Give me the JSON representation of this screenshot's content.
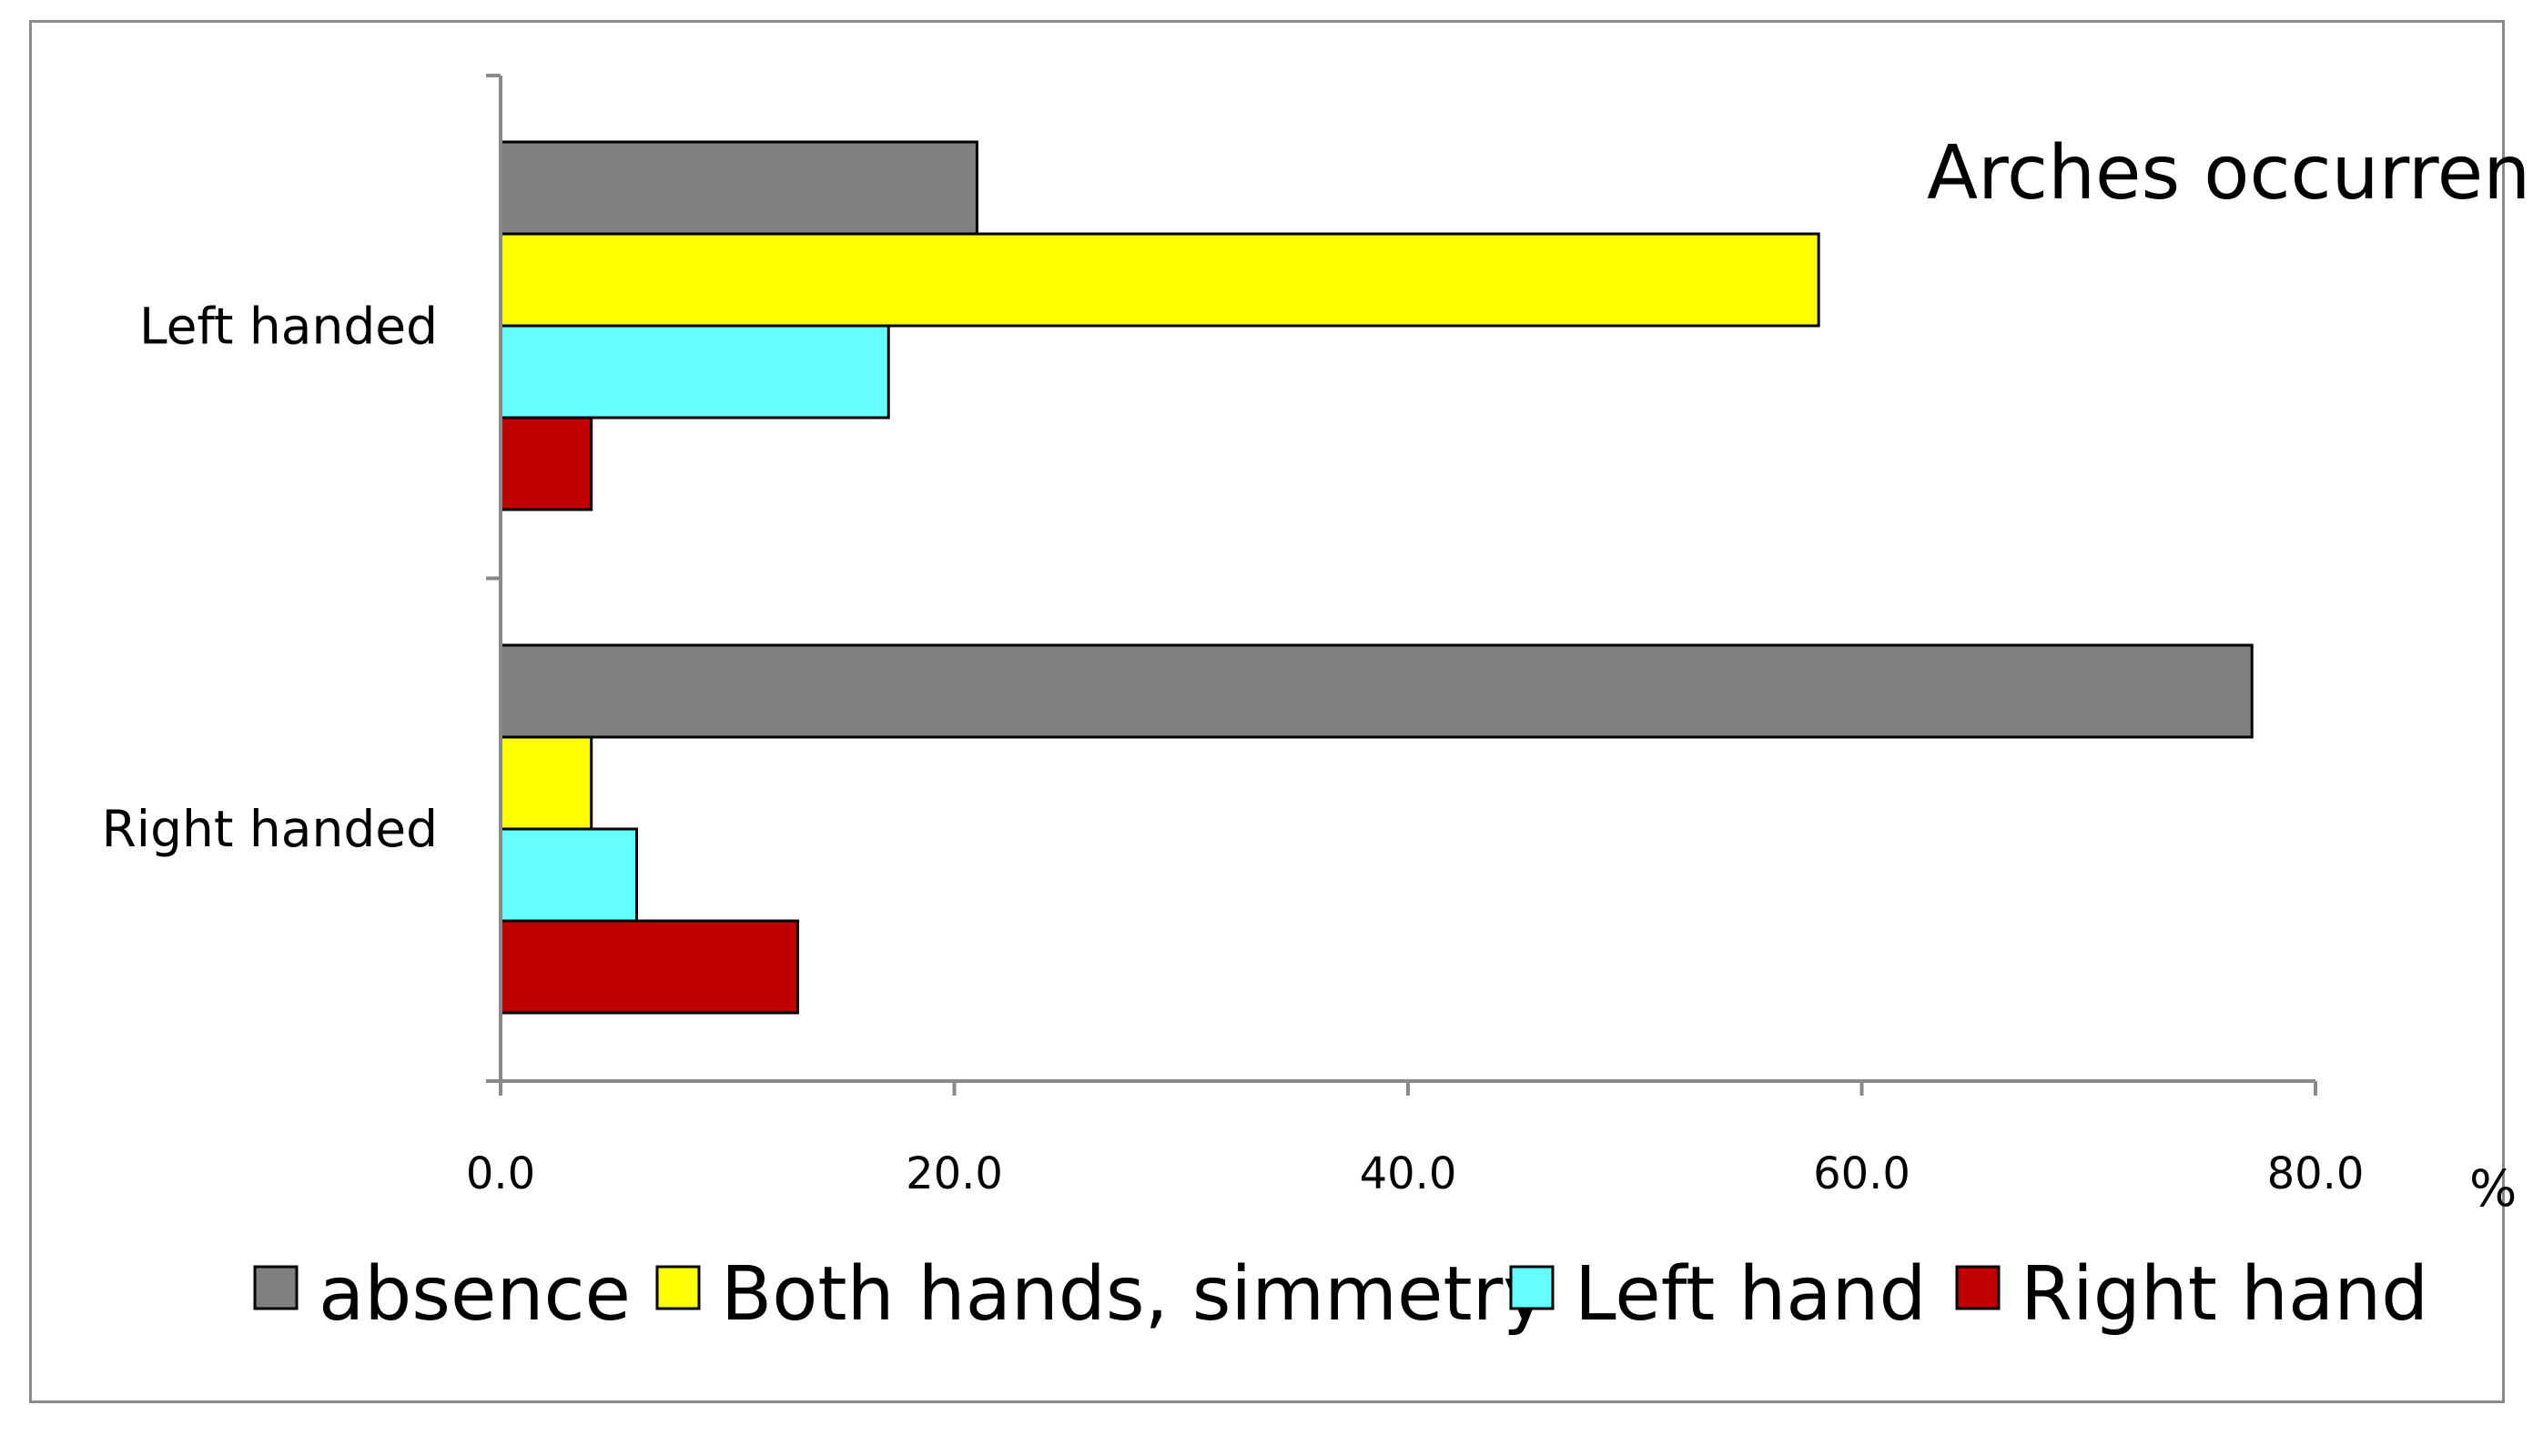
{
  "chart_data": {
    "type": "bar",
    "orientation": "horizontal",
    "title": "Arches occurrence",
    "xlabel": "%",
    "ylabel": "",
    "xlim": [
      0,
      80
    ],
    "xticks": [
      "0.0",
      "20.0",
      "40.0",
      "60.0",
      "80.0"
    ],
    "grid": false,
    "legend_position": "bottom",
    "categories": [
      "Left handed",
      "Right handed"
    ],
    "series": [
      {
        "name": "absence",
        "color": "#808080",
        "values": [
          21.0,
          77.2
        ]
      },
      {
        "name": "Both hands, simmetry",
        "color": "#ffff00",
        "values": [
          58.1,
          4.0
        ]
      },
      {
        "name": "Left hand",
        "color": "#66ffff",
        "values": [
          17.1,
          6.0
        ]
      },
      {
        "name": "Right hand",
        "color": "#c00000",
        "values": [
          4.0,
          13.1
        ]
      }
    ]
  }
}
